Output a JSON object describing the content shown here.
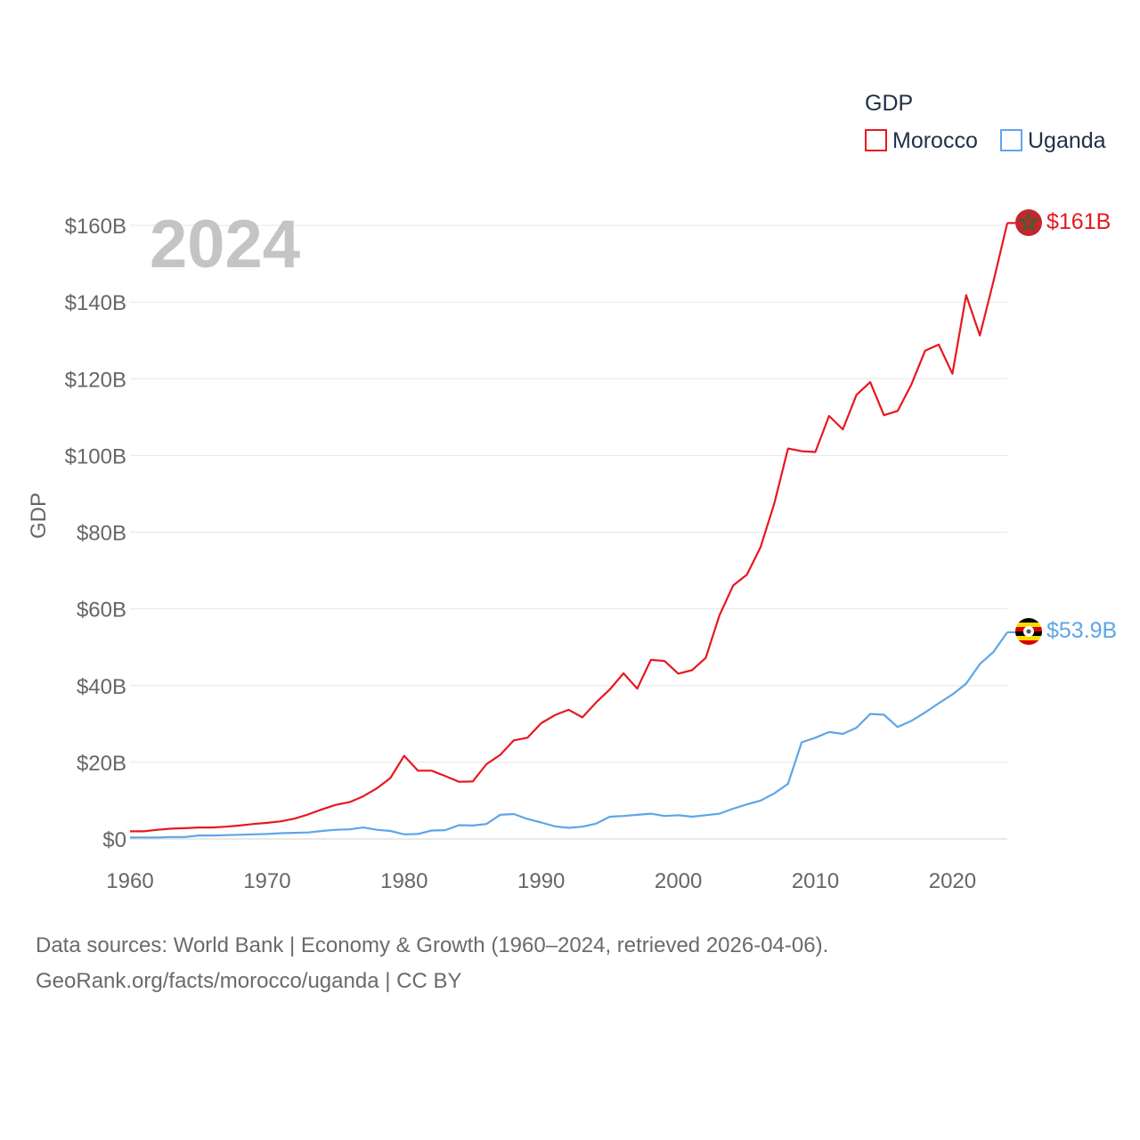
{
  "chart_data": {
    "type": "line",
    "year_label": "2024",
    "ylabel": "GDP",
    "xlabel": "",
    "legend_title": "GDP",
    "legend_position": "top-right",
    "ylim": [
      0,
      160
    ],
    "xlim": [
      1960,
      2024
    ],
    "y_ticks": [
      0,
      20,
      40,
      60,
      80,
      100,
      120,
      140,
      160
    ],
    "y_tick_labels": [
      "$0",
      "$20B",
      "$40B",
      "$60B",
      "$80B",
      "$100B",
      "$120B",
      "$140B",
      "$160B"
    ],
    "x_ticks": [
      1960,
      1970,
      1980,
      1990,
      2000,
      2010,
      2020
    ],
    "x_tick_labels": [
      "1960",
      "1970",
      "1980",
      "1990",
      "2000",
      "2010",
      "2020"
    ],
    "units": "billions USD",
    "series": [
      {
        "name": "Morocco",
        "color": "#e8171f",
        "end_label": "$161B",
        "flag_icon": "morocco-flag-icon",
        "x": [
          1960,
          1961,
          1962,
          1963,
          1964,
          1965,
          1966,
          1967,
          1968,
          1969,
          1970,
          1971,
          1972,
          1973,
          1974,
          1975,
          1976,
          1977,
          1978,
          1979,
          1980,
          1981,
          1982,
          1983,
          1984,
          1985,
          1986,
          1987,
          1988,
          1989,
          1990,
          1991,
          1992,
          1993,
          1994,
          1995,
          1996,
          1997,
          1998,
          1999,
          2000,
          2001,
          2002,
          2003,
          2004,
          2005,
          2006,
          2007,
          2008,
          2009,
          2010,
          2011,
          2012,
          2013,
          2014,
          2015,
          2016,
          2017,
          2018,
          2019,
          2020,
          2021,
          2022,
          2023,
          2024
        ],
        "values": [
          2.0,
          2.0,
          2.4,
          2.7,
          2.8,
          3.0,
          3.0,
          3.2,
          3.5,
          3.9,
          4.2,
          4.6,
          5.3,
          6.4,
          7.7,
          8.9,
          9.6,
          11.1,
          13.2,
          15.9,
          21.7,
          17.8,
          17.8,
          16.4,
          14.9,
          15.0,
          19.5,
          21.9,
          25.7,
          26.4,
          30.2,
          32.3,
          33.7,
          31.7,
          35.6,
          39.0,
          43.2,
          39.2,
          46.7,
          46.4,
          43.1,
          44.0,
          47.2,
          58.3,
          66.1,
          68.9,
          76.1,
          87.5,
          101.8,
          101.1,
          100.9,
          110.3,
          106.8,
          115.8,
          119.1,
          110.5,
          111.6,
          118.5,
          127.3,
          128.9,
          121.3,
          141.8,
          131.3,
          145.5,
          160.6
        ]
      },
      {
        "name": "Uganda",
        "color": "#5ea5e8",
        "end_label": "$53.9B",
        "flag_icon": "uganda-flag-icon",
        "x": [
          1960,
          1961,
          1962,
          1963,
          1964,
          1965,
          1966,
          1967,
          1968,
          1969,
          1970,
          1971,
          1972,
          1973,
          1974,
          1975,
          1976,
          1977,
          1978,
          1979,
          1980,
          1981,
          1982,
          1983,
          1984,
          1985,
          1986,
          1987,
          1988,
          1989,
          1990,
          1991,
          1992,
          1993,
          1994,
          1995,
          1996,
          1997,
          1998,
          1999,
          2000,
          2001,
          2002,
          2003,
          2004,
          2005,
          2006,
          2007,
          2008,
          2009,
          2010,
          2011,
          2012,
          2013,
          2014,
          2015,
          2016,
          2017,
          2018,
          2019,
          2020,
          2021,
          2022,
          2023,
          2024
        ],
        "values": [
          0.4,
          0.4,
          0.4,
          0.5,
          0.5,
          0.9,
          0.9,
          1.0,
          1.1,
          1.2,
          1.3,
          1.5,
          1.6,
          1.7,
          2.1,
          2.4,
          2.5,
          3.0,
          2.4,
          2.1,
          1.2,
          1.3,
          2.2,
          2.3,
          3.6,
          3.5,
          3.9,
          6.3,
          6.5,
          5.2,
          4.3,
          3.3,
          2.9,
          3.2,
          4.0,
          5.8,
          6.0,
          6.3,
          6.6,
          6.0,
          6.2,
          5.8,
          6.2,
          6.6,
          7.9,
          9.0,
          10.0,
          11.9,
          14.4,
          25.2,
          26.4,
          27.9,
          27.4,
          29.0,
          32.6,
          32.4,
          29.2,
          30.8,
          33.0,
          35.4,
          37.7,
          40.5,
          45.6,
          48.8,
          53.9
        ]
      }
    ]
  },
  "source": {
    "line1": "Data sources: World Bank | Economy & Growth (1960–2024, retrieved 2026-04-06).",
    "line2": "GeoRank.org/facts/morocco/uganda | CC BY"
  }
}
